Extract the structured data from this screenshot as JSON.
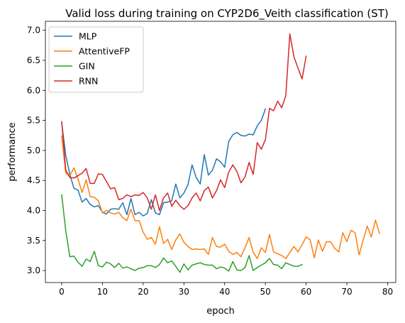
{
  "chart_data": {
    "type": "line",
    "title": "Valid loss during training on CYP2D6_Veith classification (ST)",
    "xlabel": "epoch",
    "ylabel": "performance",
    "xlim": [
      -4,
      82
    ],
    "ylim": [
      2.8,
      7.15
    ],
    "xticks": [
      0,
      10,
      20,
      30,
      40,
      50,
      60,
      70,
      80
    ],
    "yticks": [
      3.0,
      3.5,
      4.0,
      4.5,
      5.0,
      5.5,
      6.0,
      6.5,
      7.0
    ],
    "xtick_labels": [
      "0",
      "10",
      "20",
      "30",
      "40",
      "50",
      "60",
      "70",
      "80"
    ],
    "ytick_labels": [
      "3.0",
      "3.5",
      "4.0",
      "4.5",
      "5.0",
      "5.5",
      "6.0",
      "6.5",
      "7.0"
    ],
    "grid": false,
    "legend_position": "top-left",
    "series": [
      {
        "name": "MLP",
        "color": "#1f77b4",
        "values": [
          5.46,
          4.92,
          4.6,
          4.37,
          4.34,
          4.14,
          4.2,
          4.1,
          4.06,
          4.08,
          3.97,
          3.94,
          4.02,
          4.03,
          4.02,
          4.13,
          3.93,
          4.2,
          3.93,
          3.97,
          3.91,
          3.95,
          4.18,
          3.96,
          3.93,
          4.13,
          4.14,
          4.16,
          4.44,
          4.21,
          4.29,
          4.43,
          4.76,
          4.55,
          4.44,
          4.93,
          4.59,
          4.67,
          4.86,
          4.81,
          4.72,
          5.15,
          5.26,
          5.3,
          5.25,
          5.24,
          5.27,
          5.26,
          5.41,
          5.5,
          5.69
        ]
      },
      {
        "name": "AttentiveFP",
        "color": "#ff7f0e",
        "values": [
          5.24,
          4.62,
          4.58,
          4.71,
          4.52,
          4.3,
          4.51,
          4.23,
          4.22,
          4.16,
          3.96,
          4.0,
          3.96,
          3.94,
          3.97,
          3.88,
          3.83,
          4.02,
          3.83,
          3.83,
          3.64,
          3.52,
          3.55,
          3.44,
          3.73,
          3.45,
          3.52,
          3.35,
          3.51,
          3.61,
          3.47,
          3.4,
          3.35,
          3.36,
          3.35,
          3.36,
          3.27,
          3.55,
          3.4,
          3.39,
          3.44,
          3.32,
          3.27,
          3.3,
          3.23,
          3.38,
          3.55,
          3.3,
          3.2,
          3.38,
          3.3,
          3.6,
          3.31,
          3.28,
          3.25,
          3.2,
          3.3,
          3.4,
          3.31,
          3.43,
          3.56,
          3.51,
          3.21,
          3.51,
          3.32,
          3.48,
          3.48,
          3.37,
          3.31,
          3.63,
          3.48,
          3.67,
          3.63,
          3.26,
          3.51,
          3.74,
          3.56,
          3.84,
          3.62
        ]
      },
      {
        "name": "GIN",
        "color": "#2ca02c",
        "values": [
          4.26,
          3.66,
          3.23,
          3.24,
          3.14,
          3.07,
          3.19,
          3.15,
          3.32,
          3.08,
          3.06,
          3.14,
          3.11,
          3.05,
          3.12,
          3.04,
          3.06,
          3.03,
          3.0,
          3.04,
          3.05,
          3.08,
          3.08,
          3.05,
          3.1,
          3.21,
          3.13,
          3.16,
          3.07,
          2.97,
          3.11,
          3.01,
          3.09,
          3.11,
          3.13,
          3.1,
          3.09,
          3.09,
          3.03,
          3.06,
          3.04,
          2.99,
          3.15,
          3.01,
          3.0,
          3.05,
          3.25,
          3.0,
          3.05,
          3.09,
          3.13,
          3.2,
          3.1,
          3.09,
          3.03,
          3.13,
          3.1,
          3.07,
          3.07,
          3.1
        ]
      },
      {
        "name": "RNN",
        "color": "#d62728",
        "values": [
          5.48,
          4.67,
          4.55,
          4.54,
          4.58,
          4.62,
          4.7,
          4.45,
          4.45,
          4.61,
          4.6,
          4.48,
          4.36,
          4.38,
          4.18,
          4.2,
          4.26,
          4.23,
          4.26,
          4.25,
          4.3,
          4.21,
          4.02,
          4.26,
          4.0,
          4.21,
          4.29,
          4.07,
          4.17,
          4.08,
          4.02,
          4.08,
          4.21,
          4.29,
          4.16,
          4.33,
          4.39,
          4.21,
          4.33,
          4.51,
          4.38,
          4.64,
          4.76,
          4.65,
          4.46,
          4.56,
          4.8,
          4.6,
          5.13,
          5.02,
          5.18,
          5.7,
          5.66,
          5.82,
          5.71,
          5.91,
          6.94,
          6.56,
          6.37,
          6.19,
          6.57
        ]
      }
    ]
  }
}
